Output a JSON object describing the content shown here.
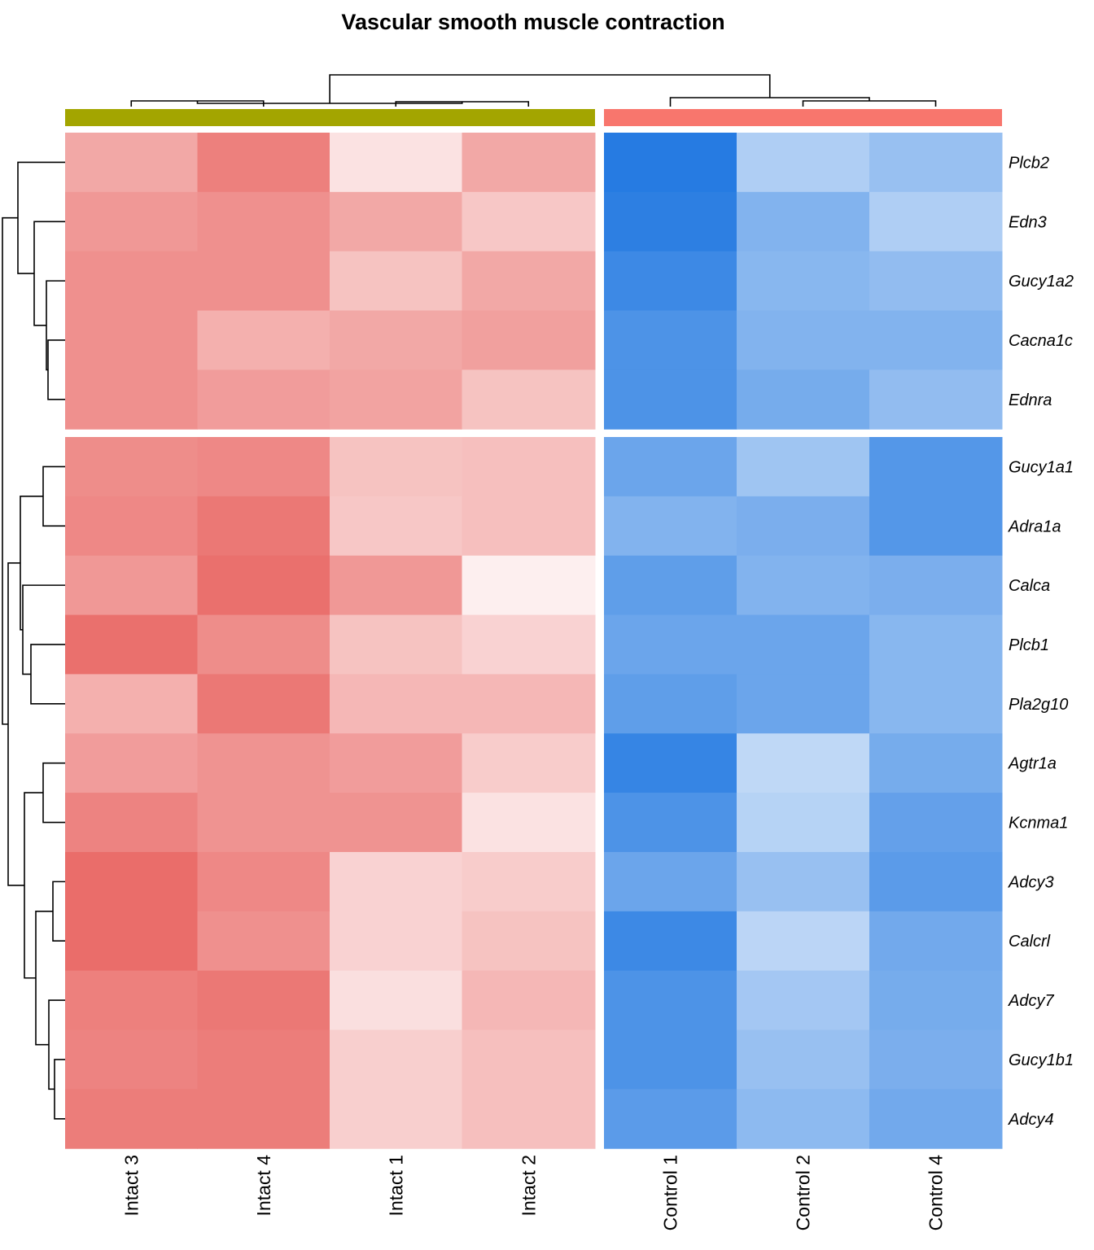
{
  "chart_data": {
    "type": "heatmap",
    "title": "Vascular smooth muscle contraction",
    "columns": [
      "Intact 3",
      "Intact 4",
      "Intact 1",
      "Intact 2",
      "Control 1",
      "Control 2",
      "Control 4"
    ],
    "column_groups": [
      {
        "columns": [
          "Intact 3",
          "Intact 4",
          "Intact 1",
          "Intact 2"
        ],
        "color": "#A3A500"
      },
      {
        "columns": [
          "Control 1",
          "Control 2",
          "Control 4"
        ],
        "color": "#F8766D"
      }
    ],
    "rows": [
      "Plcb2",
      "Edn3",
      "Gucy1a2",
      "Cacna1c",
      "Ednra",
      "Gucy1a1",
      "Adra1a",
      "Calca",
      "Plcb1",
      "Pla2g10",
      "Agtr1a",
      "Kcnma1",
      "Adcy3",
      "Calcrl",
      "Adcy7",
      "Gucy1b1",
      "Adcy4"
    ],
    "row_split_after": 5,
    "values": [
      [
        0.55,
        0.8,
        0.18,
        0.55,
        -0.95,
        -0.35,
        -0.45
      ],
      [
        0.65,
        0.7,
        0.55,
        0.35,
        -0.92,
        -0.55,
        -0.35
      ],
      [
        0.7,
        0.7,
        0.38,
        0.55,
        -0.85,
        -0.52,
        -0.48
      ],
      [
        0.7,
        0.5,
        0.55,
        0.6,
        -0.78,
        -0.55,
        -0.55
      ],
      [
        0.7,
        0.62,
        0.58,
        0.38,
        -0.78,
        -0.6,
        -0.48
      ],
      [
        0.72,
        0.75,
        0.38,
        0.4,
        -0.65,
        -0.42,
        -0.75
      ],
      [
        0.75,
        0.85,
        0.35,
        0.4,
        -0.55,
        -0.58,
        -0.75
      ],
      [
        0.65,
        0.9,
        0.65,
        0.1,
        -0.7,
        -0.55,
        -0.58
      ],
      [
        0.9,
        0.72,
        0.38,
        0.28,
        -0.65,
        -0.65,
        -0.52
      ],
      [
        0.5,
        0.85,
        0.45,
        0.45,
        -0.7,
        -0.65,
        -0.52
      ],
      [
        0.62,
        0.68,
        0.62,
        0.32,
        -0.88,
        -0.28,
        -0.6
      ],
      [
        0.78,
        0.68,
        0.68,
        0.18,
        -0.78,
        -0.32,
        -0.68
      ],
      [
        0.92,
        0.75,
        0.28,
        0.32,
        -0.65,
        -0.45,
        -0.72
      ],
      [
        0.92,
        0.7,
        0.28,
        0.38,
        -0.85,
        -0.3,
        -0.62
      ],
      [
        0.8,
        0.85,
        0.2,
        0.45,
        -0.78,
        -0.4,
        -0.6
      ],
      [
        0.78,
        0.82,
        0.3,
        0.4,
        -0.78,
        -0.45,
        -0.58
      ],
      [
        0.82,
        0.82,
        0.3,
        0.4,
        -0.72,
        -0.5,
        -0.62
      ]
    ],
    "color_scale": {
      "low": "#1B74E0",
      "mid": "#FFFFFF",
      "high": "#E8605D"
    },
    "column_dendrogram": true,
    "row_dendrogram": true,
    "legend": "none"
  }
}
